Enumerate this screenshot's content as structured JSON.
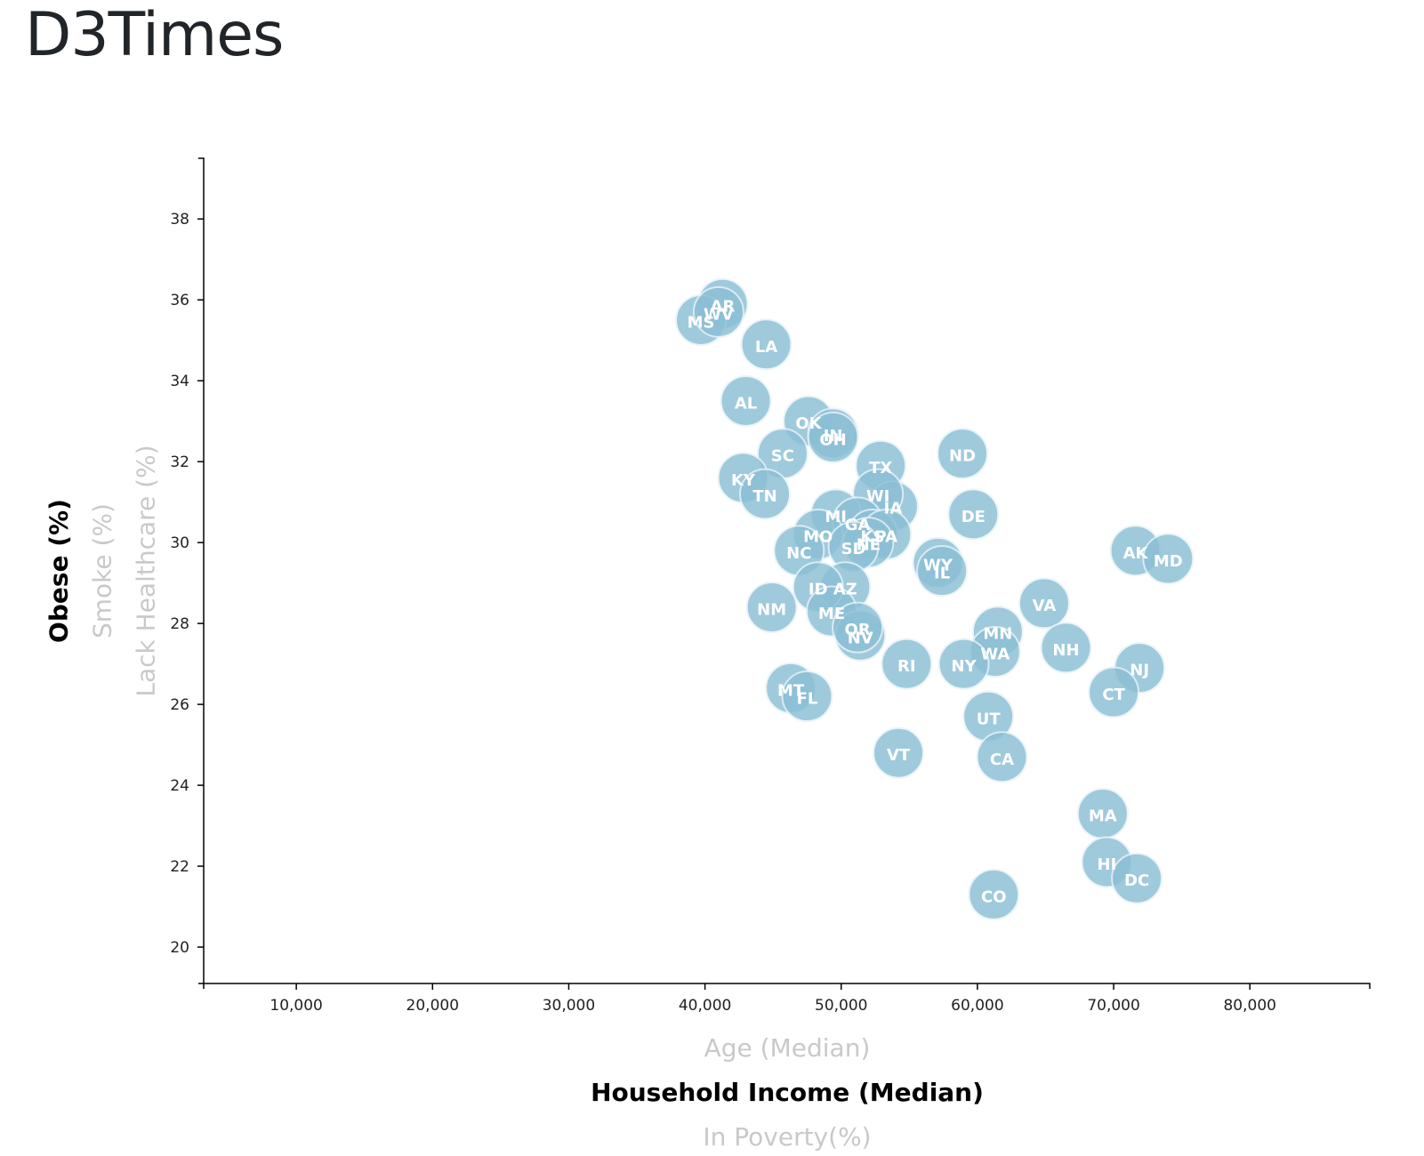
{
  "page": {
    "title": "D3Times"
  },
  "chart_data": {
    "type": "scatter",
    "x_axis": {
      "labels": [
        {
          "text": "Age (Median)",
          "active": false
        },
        {
          "text": "Household Income (Median)",
          "active": true
        },
        {
          "text": "In Poverty(%)",
          "active": false
        }
      ],
      "ticks": [
        10000,
        20000,
        30000,
        40000,
        50000,
        60000,
        70000,
        80000
      ],
      "tick_labels": [
        "10,000",
        "20,000",
        "30,000",
        "40,000",
        "50,000",
        "60,000",
        "70,000",
        "80,000"
      ],
      "range": [
        3200,
        88800
      ]
    },
    "y_axis": {
      "labels": [
        {
          "text": "Obese (%)",
          "active": true
        },
        {
          "text": "Smoke (%)",
          "active": false
        },
        {
          "text": "Lack Healthcare (%)",
          "active": false
        }
      ],
      "ticks": [
        20,
        22,
        24,
        26,
        28,
        30,
        32,
        34,
        36,
        38
      ],
      "tick_labels": [
        "20",
        "22",
        "24",
        "26",
        "28",
        "30",
        "32",
        "34",
        "36",
        "38"
      ],
      "range": [
        19.1,
        39.5
      ]
    },
    "grid": false,
    "points": [
      {
        "abbr": "AR",
        "x": 41300,
        "y": 35.9
      },
      {
        "abbr": "MS",
        "x": 39700,
        "y": 35.5
      },
      {
        "abbr": "WV",
        "x": 41000,
        "y": 35.7
      },
      {
        "abbr": "LA",
        "x": 44500,
        "y": 34.9
      },
      {
        "abbr": "AL",
        "x": 43000,
        "y": 33.5
      },
      {
        "abbr": "OK",
        "x": 47600,
        "y": 33.0
      },
      {
        "abbr": "IN",
        "x": 49400,
        "y": 32.7
      },
      {
        "abbr": "OH",
        "x": 49400,
        "y": 32.6
      },
      {
        "abbr": "ND",
        "x": 58900,
        "y": 32.2
      },
      {
        "abbr": "SC",
        "x": 45700,
        "y": 32.2
      },
      {
        "abbr": "TX",
        "x": 52900,
        "y": 31.9
      },
      {
        "abbr": "KY",
        "x": 42800,
        "y": 31.6
      },
      {
        "abbr": "TN",
        "x": 44400,
        "y": 31.2
      },
      {
        "abbr": "IA",
        "x": 53800,
        "y": 30.9
      },
      {
        "abbr": "WI",
        "x": 52700,
        "y": 31.2
      },
      {
        "abbr": "MI",
        "x": 49600,
        "y": 30.7
      },
      {
        "abbr": "DE",
        "x": 59700,
        "y": 30.7
      },
      {
        "abbr": "GA",
        "x": 51200,
        "y": 30.5
      },
      {
        "abbr": "KS",
        "x": 52300,
        "y": 30.2
      },
      {
        "abbr": "PA",
        "x": 53300,
        "y": 30.2
      },
      {
        "abbr": "MO",
        "x": 48300,
        "y": 30.2
      },
      {
        "abbr": "NE",
        "x": 52000,
        "y": 30.0
      },
      {
        "abbr": "SD",
        "x": 50900,
        "y": 29.9
      },
      {
        "abbr": "NC",
        "x": 46900,
        "y": 29.8
      },
      {
        "abbr": "AK",
        "x": 71600,
        "y": 29.8
      },
      {
        "abbr": "MD",
        "x": 74000,
        "y": 29.6
      },
      {
        "abbr": "WY",
        "x": 57100,
        "y": 29.5
      },
      {
        "abbr": "IL",
        "x": 57400,
        "y": 29.3
      },
      {
        "abbr": "AZ",
        "x": 50300,
        "y": 28.9
      },
      {
        "abbr": "ID",
        "x": 48300,
        "y": 28.9
      },
      {
        "abbr": "VA",
        "x": 64900,
        "y": 28.5
      },
      {
        "abbr": "NM",
        "x": 44900,
        "y": 28.4
      },
      {
        "abbr": "ME",
        "x": 49300,
        "y": 28.3
      },
      {
        "abbr": "MN",
        "x": 61500,
        "y": 27.8
      },
      {
        "abbr": "NV",
        "x": 51400,
        "y": 27.7
      },
      {
        "abbr": "OR",
        "x": 51200,
        "y": 27.9
      },
      {
        "abbr": "NH",
        "x": 66500,
        "y": 27.4
      },
      {
        "abbr": "WA",
        "x": 61300,
        "y": 27.3
      },
      {
        "abbr": "RI",
        "x": 54800,
        "y": 27.0
      },
      {
        "abbr": "NY",
        "x": 59000,
        "y": 27.0
      },
      {
        "abbr": "NJ",
        "x": 71900,
        "y": 26.9
      },
      {
        "abbr": "CT",
        "x": 70000,
        "y": 26.3
      },
      {
        "abbr": "MT",
        "x": 46300,
        "y": 26.4
      },
      {
        "abbr": "FL",
        "x": 47500,
        "y": 26.2
      },
      {
        "abbr": "UT",
        "x": 60800,
        "y": 25.7
      },
      {
        "abbr": "VT",
        "x": 54200,
        "y": 24.8
      },
      {
        "abbr": "CA",
        "x": 61800,
        "y": 24.7
      },
      {
        "abbr": "MA",
        "x": 69200,
        "y": 23.3
      },
      {
        "abbr": "HI",
        "x": 69500,
        "y": 22.1
      },
      {
        "abbr": "DC",
        "x": 71700,
        "y": 21.7
      },
      {
        "abbr": "CO",
        "x": 61200,
        "y": 21.3
      }
    ]
  }
}
